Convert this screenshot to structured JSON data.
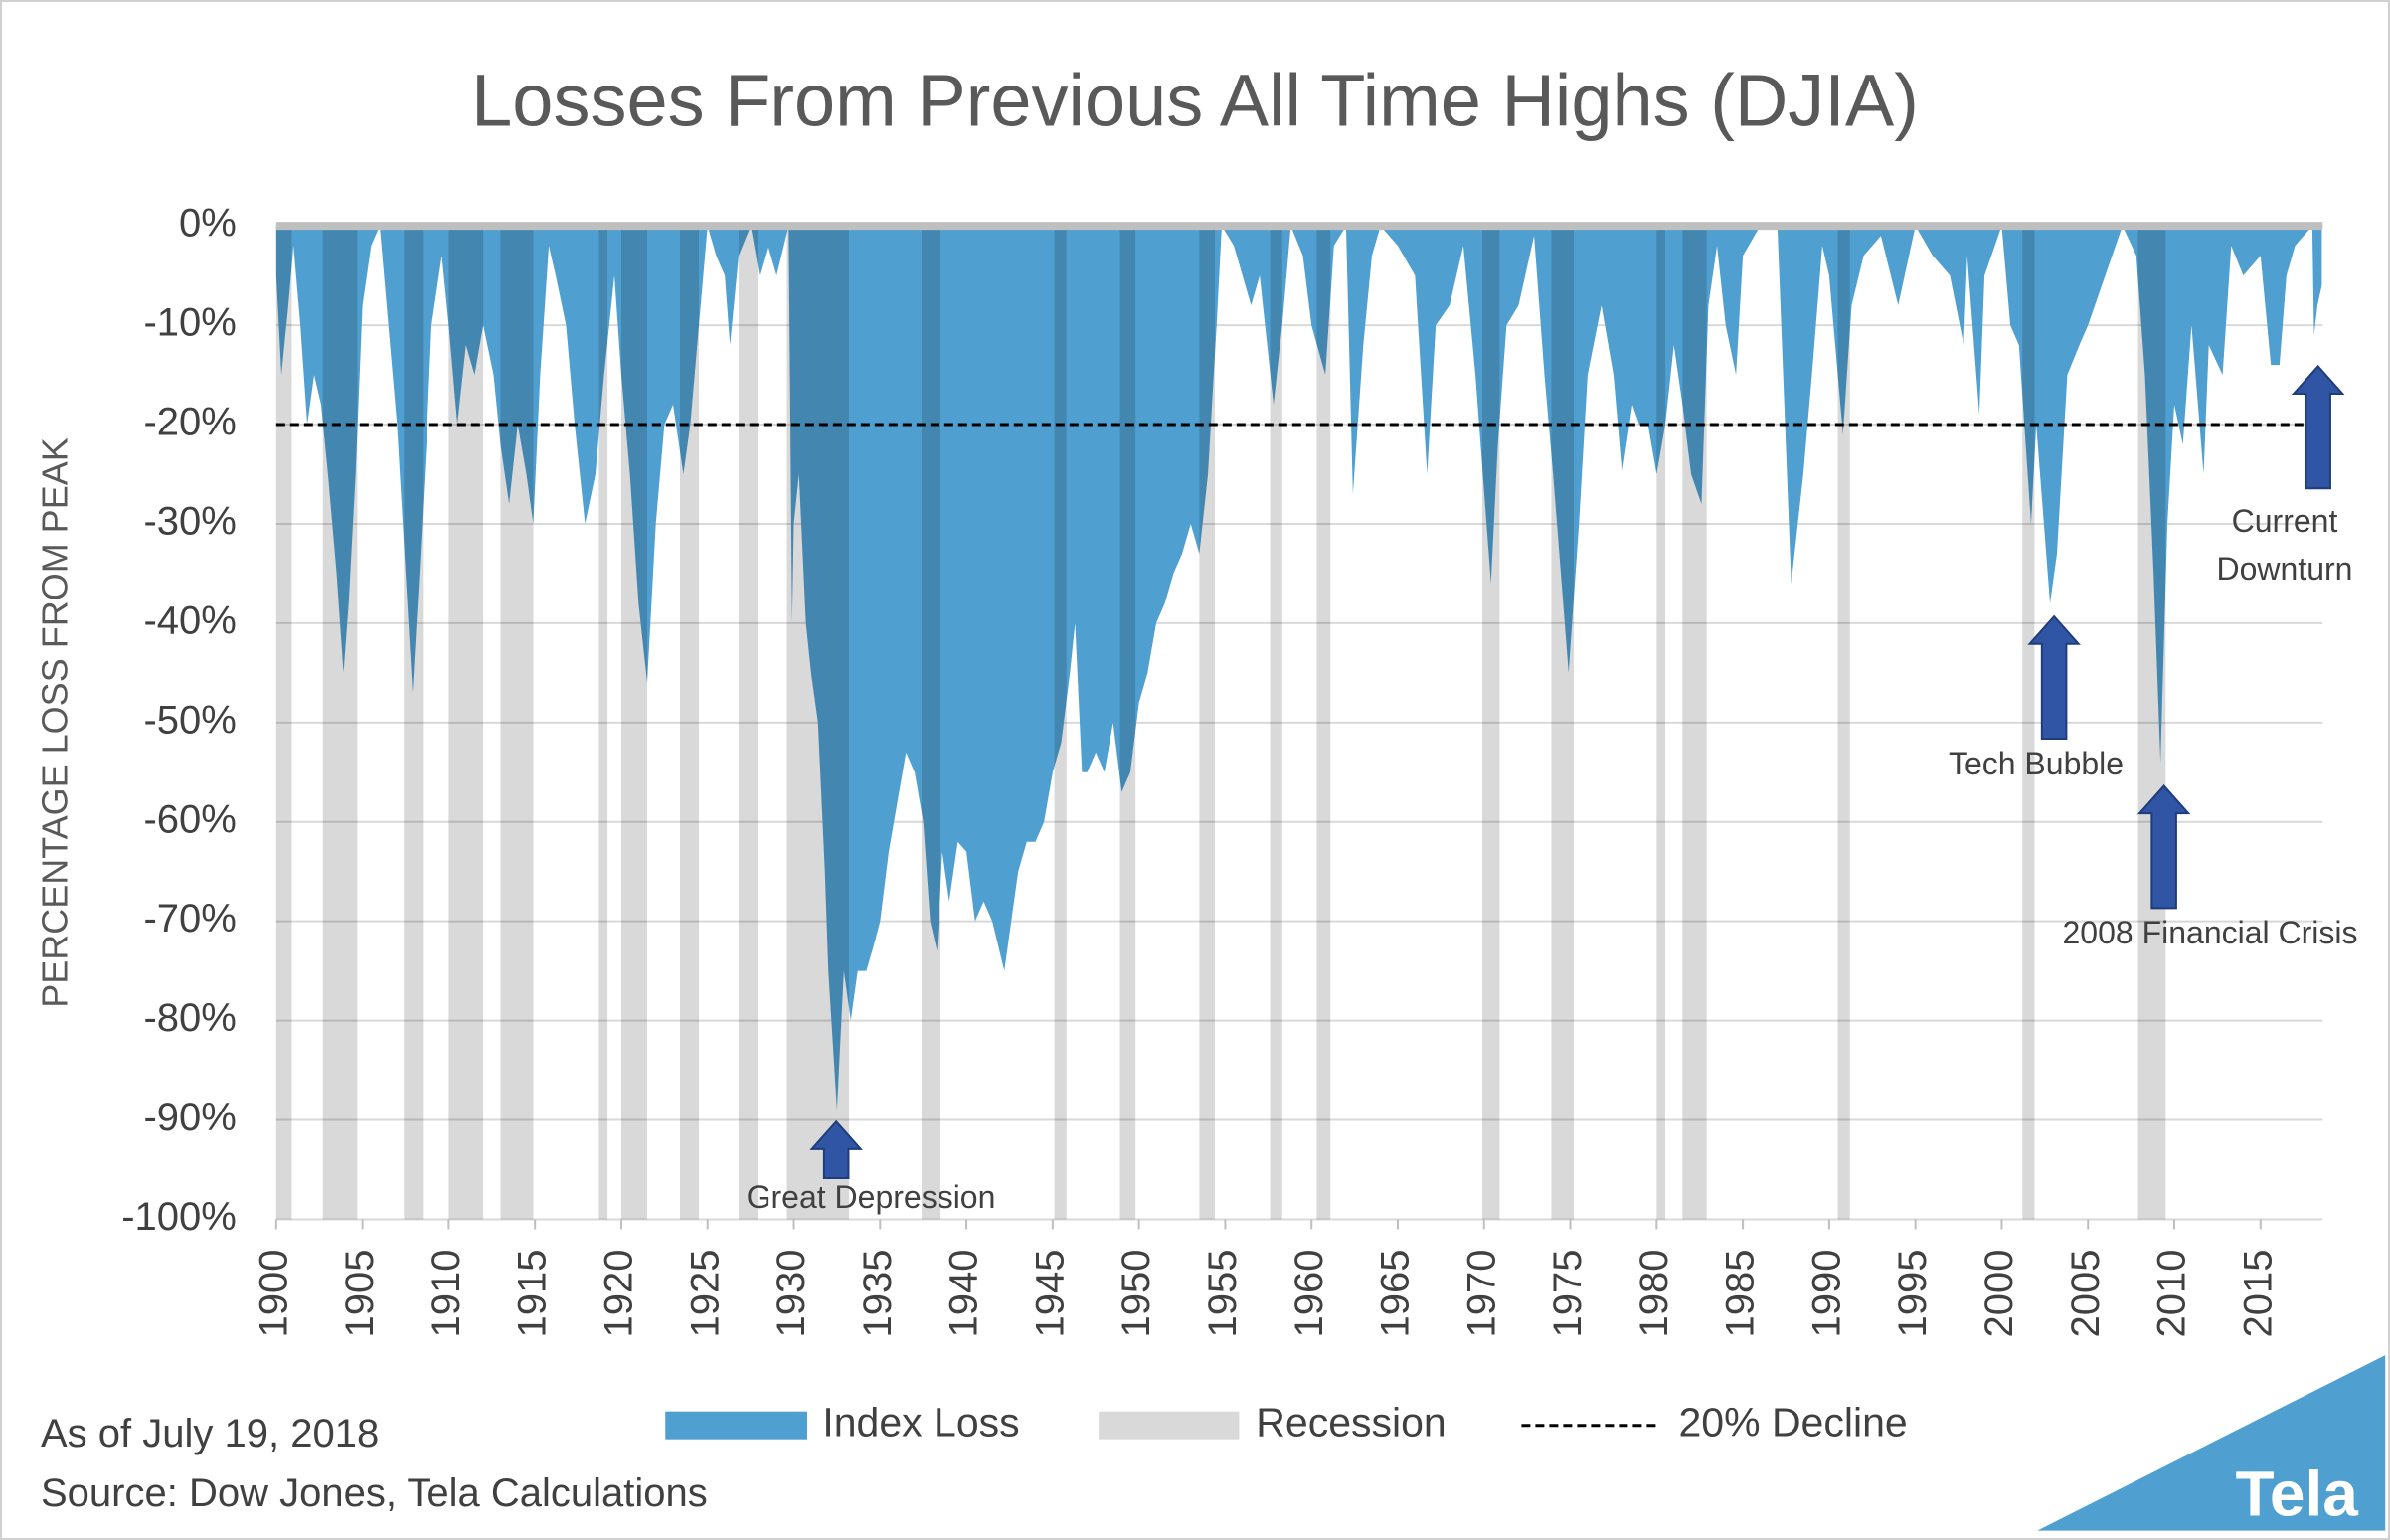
{
  "chart_data": {
    "type": "area",
    "title": "Losses From Previous All Time Highs (DJIA)",
    "y_label": "PERCENTAGE LOSS FROM PEAK",
    "xlim": [
      1900,
      2018.6
    ],
    "xticks": [
      1900,
      1905,
      1910,
      1915,
      1920,
      1925,
      1930,
      1935,
      1940,
      1945,
      1950,
      1955,
      1960,
      1965,
      1970,
      1975,
      1980,
      1985,
      1990,
      1995,
      2000,
      2005,
      2010,
      2015
    ],
    "ylim": [
      -100,
      0
    ],
    "yticks": [
      {
        "value": 0,
        "label": "0%"
      },
      {
        "value": -10,
        "label": "-10%"
      },
      {
        "value": -20,
        "label": "-20%"
      },
      {
        "value": -30,
        "label": "-30%"
      },
      {
        "value": -40,
        "label": "-40%"
      },
      {
        "value": -50,
        "label": "-50%"
      },
      {
        "value": -60,
        "label": "-60%"
      },
      {
        "value": -70,
        "label": "-70%"
      },
      {
        "value": -80,
        "label": "-80%"
      },
      {
        "value": -90,
        "label": "-90%"
      },
      {
        "value": -100,
        "label": "-100%"
      }
    ],
    "grid": true,
    "x": [
      1900,
      1900.3,
      1900.7,
      1901,
      1901.4,
      1901.8,
      1902.2,
      1902.6,
      1903,
      1903.5,
      1903.9,
      1904.2,
      1904.6,
      1905,
      1905.5,
      1906,
      1906.5,
      1907,
      1907.5,
      1907.9,
      1908.3,
      1908.7,
      1909,
      1909.6,
      1910,
      1910.5,
      1911,
      1911.5,
      1912,
      1912.6,
      1913,
      1913.5,
      1914,
      1914.5,
      1914.9,
      1915.3,
      1915.8,
      1916.2,
      1916.8,
      1917.3,
      1917.9,
      1918.5,
      1919,
      1919.6,
      1920,
      1920.5,
      1921,
      1921.5,
      1922,
      1922.5,
      1923,
      1923.6,
      1924,
      1924.5,
      1925,
      1925.5,
      1926,
      1926.3,
      1926.8,
      1927.5,
      1928,
      1928.5,
      1929,
      1929.7,
      1929.9,
      1930,
      1930.3,
      1930.7,
      1931,
      1931.4,
      1931.8,
      1932,
      1932.5,
      1932.9,
      1933.3,
      1933.7,
      1934.2,
      1934.7,
      1935,
      1935.5,
      1936,
      1936.5,
      1937,
      1937.5,
      1937.9,
      1938.3,
      1938.6,
      1939,
      1939.5,
      1940,
      1940.5,
      1941,
      1941.5,
      1942.2,
      1942.6,
      1943,
      1943.5,
      1944,
      1944.5,
      1945,
      1945.5,
      1946,
      1946.3,
      1946.7,
      1947,
      1947.5,
      1948,
      1948.5,
      1949,
      1949.5,
      1950,
      1950.5,
      1951,
      1951.5,
      1952,
      1952.5,
      1953,
      1953.5,
      1954,
      1954.5,
      1954.8,
      1955.5,
      1956,
      1956.5,
      1957,
      1957.8,
      1958.3,
      1958.8,
      1959.5,
      1960,
      1960.8,
      1961.3,
      1962,
      1962.4,
      1963,
      1963.5,
      1964,
      1965,
      1966,
      1966.7,
      1967.2,
      1968,
      1968.8,
      1969.5,
      1970.4,
      1970.8,
      1971.3,
      1972,
      1972.9,
      1973.5,
      1974,
      1974.9,
      1975.5,
      1976,
      1976.8,
      1977.5,
      1978,
      1978.6,
      1979,
      1979.5,
      1980,
      1980.5,
      1981,
      1981.5,
      1982,
      1982.6,
      1983,
      1983.5,
      1984,
      1984.6,
      1985,
      1986,
      1987,
      1987.8,
      1988.5,
      1989,
      1989.6,
      1990,
      1990.8,
      1991.3,
      1992,
      1993,
      1994,
      1995,
      1996,
      1997,
      1997.8,
      1998,
      1998.7,
      1999,
      2000,
      2000.5,
      2001,
      2001.7,
      2002,
      2002.8,
      2003.2,
      2003.8,
      2004.5,
      2005,
      2006,
      2007,
      2007.8,
      2008.3,
      2008.8,
      2009.2,
      2009.6,
      2010,
      2010.5,
      2011,
      2011.7,
      2012,
      2012.8,
      2013.3,
      2014,
      2015,
      2015.6,
      2016.1,
      2016.5,
      2017,
      2018,
      2018.1,
      2018.3,
      2018.55
    ],
    "series": [
      {
        "name": "Index Loss",
        "color": "#4f9fd0",
        "values": [
          -5,
          -15,
          -8,
          -2,
          -10,
          -20,
          -15,
          -18,
          -25,
          -35,
          -45,
          -38,
          -25,
          -8,
          -2,
          0,
          -10,
          -20,
          -35,
          -47,
          -35,
          -22,
          -10,
          -3,
          -10,
          -20,
          -12,
          -15,
          -10,
          -15,
          -22,
          -28,
          -20,
          -25,
          -30,
          -15,
          -2,
          -5,
          -10,
          -20,
          -30,
          -25,
          -15,
          -5,
          -15,
          -25,
          -38,
          -46,
          -30,
          -20,
          -18,
          -25,
          -20,
          -10,
          0,
          -3,
          -5,
          -12,
          -3,
          0,
          -5,
          -2,
          -5,
          0,
          -40,
          -30,
          -25,
          -40,
          -45,
          -50,
          -65,
          -75,
          -89,
          -75,
          -80,
          -75,
          -75,
          -72,
          -70,
          -63,
          -58,
          -53,
          -55,
          -60,
          -70,
          -73,
          -63,
          -68,
          -62,
          -63,
          -70,
          -68,
          -70,
          -75,
          -70,
          -65,
          -62,
          -62,
          -60,
          -55,
          -52,
          -45,
          -40,
          -55,
          -55,
          -53,
          -55,
          -50,
          -57,
          -55,
          -48,
          -45,
          -40,
          -38,
          -35,
          -33,
          -30,
          -33,
          -25,
          -10,
          0,
          -2,
          -5,
          -8,
          -5,
          -18,
          -10,
          0,
          -3,
          -10,
          -15,
          -2,
          0,
          -27,
          -12,
          -3,
          0,
          -2,
          -5,
          -25,
          -10,
          -8,
          -2,
          -15,
          -36,
          -22,
          -10,
          -8,
          -1,
          -15,
          -25,
          -45,
          -30,
          -15,
          -8,
          -15,
          -25,
          -18,
          -20,
          -20,
          -25,
          -20,
          -12,
          -18,
          -25,
          -28,
          -8,
          -2,
          -10,
          -15,
          -3,
          0,
          0,
          -36,
          -25,
          -15,
          -2,
          -5,
          -21,
          -8,
          -3,
          -1,
          -8,
          0,
          -3,
          -5,
          -12,
          -3,
          -19,
          -5,
          0,
          -10,
          -12,
          -30,
          -20,
          -38,
          -33,
          -15,
          -12,
          -10,
          -5,
          0,
          -3,
          -15,
          -35,
          -54,
          -30,
          -18,
          -22,
          -10,
          -25,
          -12,
          -15,
          -2,
          -5,
          -3,
          -14,
          -14,
          -5,
          -2,
          0,
          -11,
          -8,
          -6
        ]
      }
    ],
    "recessions": {
      "name": "Recession",
      "color": "#d9d9d9",
      "periods": [
        [
          1900,
          1900.9
        ],
        [
          1902.7,
          1904.7
        ],
        [
          1907.4,
          1908.5
        ],
        [
          1910,
          1912
        ],
        [
          1913,
          1914.9
        ],
        [
          1918.7,
          1919.2
        ],
        [
          1920,
          1921.5
        ],
        [
          1923.4,
          1924.5
        ],
        [
          1926.8,
          1927.9
        ],
        [
          1929.6,
          1933.2
        ],
        [
          1937.4,
          1938.5
        ],
        [
          1945.1,
          1945.8
        ],
        [
          1948.9,
          1949.8
        ],
        [
          1953.5,
          1954.4
        ],
        [
          1957.6,
          1958.3
        ],
        [
          1960.3,
          1961.1
        ],
        [
          1969.9,
          1970.9
        ],
        [
          1973.9,
          1975.2
        ],
        [
          1980,
          1980.5
        ],
        [
          1981.5,
          1982.9
        ],
        [
          1990.5,
          1991.2
        ],
        [
          2001.2,
          2001.9
        ],
        [
          2007.9,
          2009.5
        ]
      ]
    },
    "reference_line": {
      "name": "20% Decline",
      "value": -20,
      "color": "#000000"
    },
    "annotations": [
      "Great Depression",
      "Tech Bubble",
      "2008 Financial Crisis",
      "Current Downturn"
    ],
    "notes": [
      "As of July 19, 2018",
      "Source: Dow Jones, Tela Calculations"
    ],
    "logo": "Tela"
  }
}
